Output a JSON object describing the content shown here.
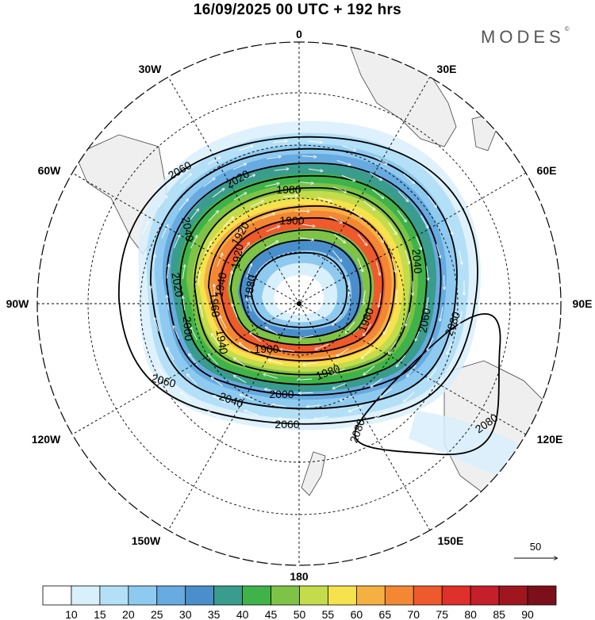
{
  "header": {
    "title": "16/09/2025  00 UTC  + 192 hrs",
    "brand": "MODES",
    "brand_mark": "©"
  },
  "map": {
    "projection": "polar-stereographic-south",
    "longitude_labels": {
      "lon_0": "0",
      "lon_30e": "30E",
      "lon_60e": "60E",
      "lon_90e": "90E",
      "lon_120e": "120E",
      "lon_150e": "150E",
      "lon_180": "180",
      "lon_150w": "150W",
      "lon_120w": "120W",
      "lon_90w": "90W",
      "lon_60w": "60W",
      "lon_30w": "30W"
    },
    "contour_labels": {
      "c2060_a": "2060",
      "c2060_b": "2060",
      "c2060_c": "2060",
      "c2060_d": "2060",
      "c2080_a": "2080",
      "c2080_b": "2080",
      "c2080_c": "2080",
      "c2040_a": "2040",
      "c2040_b": "2040",
      "c2040_c": "2040",
      "c2020_a": "2020",
      "c2020_b": "2020",
      "c2000_a": "2000",
      "c2000_b": "2000",
      "c1980_a": "1980",
      "c1980_b": "1980",
      "c1980_c": "1980",
      "c1960_a": "1960",
      "c1940_a": "1940",
      "c1940_b": "1940",
      "c1920_a": "1920",
      "c1920_b": "1920",
      "c1900_a": "1900",
      "c1900_b": "1900",
      "c1880_a": "1880"
    },
    "vector_reference": "50"
  },
  "colorbar": {
    "labels": [
      "10",
      "15",
      "20",
      "25",
      "30",
      "35",
      "40",
      "45",
      "50",
      "55",
      "60",
      "65",
      "70",
      "75",
      "80",
      "85",
      "90"
    ],
    "colors": [
      "#ffffff",
      "#d8effc",
      "#b4e0f7",
      "#8ecaf0",
      "#67abe0",
      "#4a8fcb",
      "#3a9c8c",
      "#3fb34a",
      "#7ec346",
      "#c4db4b",
      "#f5e24d",
      "#f5b042",
      "#f48733",
      "#ee5a2b",
      "#e0302b",
      "#c41f2a",
      "#a0161f",
      "#7c101a"
    ]
  },
  "colors": {
    "land": "#efefef",
    "contour": "#000000",
    "grid": "#000000"
  }
}
